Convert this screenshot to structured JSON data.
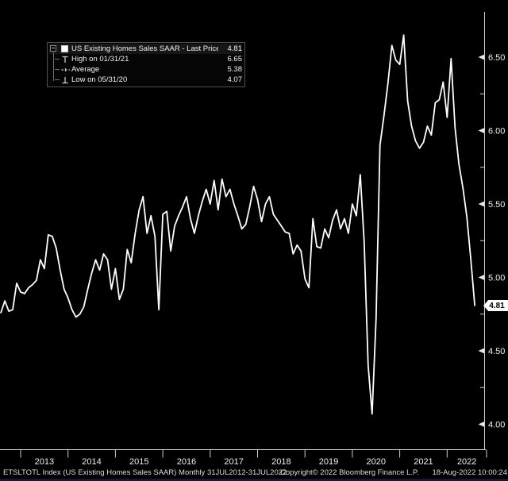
{
  "app": {
    "name": "Bloomberg Terminal chart",
    "background": "#000000",
    "line_color": "#ffffff",
    "axis_color": "#cfcfcf"
  },
  "legend": {
    "rows": [
      {
        "label": "US Existing Homes Sales SAAR - Last Price",
        "value": "4.81",
        "marker": "series-swatch"
      },
      {
        "label": "High on 01/31/21",
        "value": "6.65",
        "marker": "high"
      },
      {
        "label": "Average",
        "value": "5.38",
        "marker": "average"
      },
      {
        "label": "Low on 05/31/20",
        "value": "4.07",
        "marker": "low"
      }
    ]
  },
  "last_price_badge": "4.81",
  "footer": {
    "left": "ETSLTOTL Index (US Existing Homes Sales SAAR)  Monthly 31JUL2012-31JUL2022",
    "center": "Copyright© 2022 Bloomberg Finance L.P.",
    "right": "18-Aug-2022 10:00:24"
  },
  "chart_data": {
    "type": "line",
    "title": "US Existing Homes Sales SAAR - Last Price",
    "grid": false,
    "legend_position": "top-left",
    "y_axis": {
      "side": "right",
      "range": [
        3.85,
        6.78
      ],
      "major_ticks": [
        4.0,
        4.5,
        5.0,
        5.5,
        6.0,
        6.5
      ],
      "minor_step": 0.25
    },
    "x_ticks": [
      2013,
      2014,
      2015,
      2016,
      2017,
      2018,
      2019,
      2020,
      2021,
      2022
    ],
    "stats": {
      "last": 4.81,
      "high_date": "01/31/21",
      "high": 6.65,
      "average": 5.38,
      "low_date": "05/31/20",
      "low": 4.07
    },
    "series": [
      {
        "name": "US Existing Homes Sales SAAR",
        "color": "#ffffff",
        "frequency": "monthly",
        "start_month": "2012-07",
        "end_month": "2022-07",
        "values": [
          4.76,
          4.84,
          4.77,
          4.78,
          4.96,
          4.9,
          4.89,
          4.93,
          4.95,
          4.98,
          5.12,
          5.06,
          5.29,
          5.28,
          5.2,
          5.05,
          4.92,
          4.86,
          4.78,
          4.73,
          4.75,
          4.8,
          4.92,
          5.03,
          5.12,
          5.05,
          5.16,
          5.12,
          4.92,
          5.06,
          4.85,
          4.92,
          5.19,
          5.1,
          5.3,
          5.46,
          5.55,
          5.3,
          5.42,
          5.28,
          4.78,
          5.43,
          5.45,
          5.18,
          5.35,
          5.42,
          5.48,
          5.55,
          5.4,
          5.3,
          5.42,
          5.52,
          5.6,
          5.5,
          5.66,
          5.46,
          5.67,
          5.55,
          5.6,
          5.5,
          5.42,
          5.33,
          5.36,
          5.48,
          5.62,
          5.53,
          5.38,
          5.5,
          5.55,
          5.43,
          5.39,
          5.35,
          5.31,
          5.3,
          5.16,
          5.22,
          5.18,
          4.99,
          4.93,
          5.4,
          5.21,
          5.2,
          5.33,
          5.27,
          5.39,
          5.46,
          5.33,
          5.4,
          5.3,
          5.5,
          5.42,
          5.7,
          5.24,
          4.4,
          4.07,
          4.72,
          5.9,
          6.1,
          6.32,
          6.58,
          6.48,
          6.45,
          6.65,
          6.2,
          6.03,
          5.93,
          5.88,
          5.92,
          6.03,
          5.97,
          6.19,
          6.21,
          6.33,
          6.09,
          6.49,
          6.02,
          5.77,
          5.61,
          5.41,
          5.12,
          4.81
        ]
      }
    ]
  }
}
